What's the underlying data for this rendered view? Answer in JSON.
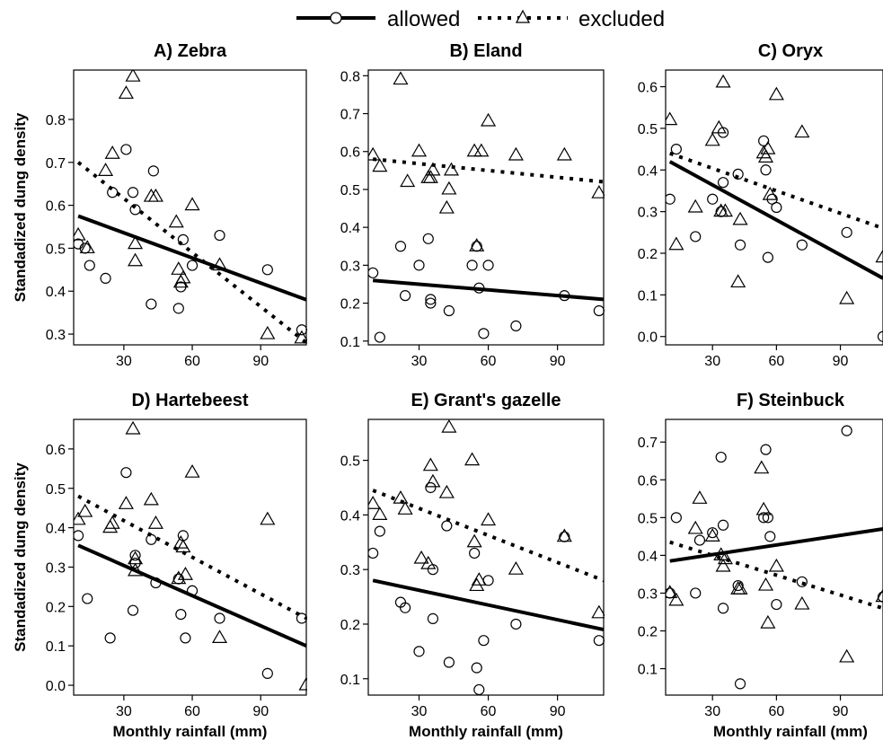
{
  "legend": {
    "allowed": "allowed",
    "excluded": "excluded"
  },
  "style": {
    "allowed_marker": "circle",
    "excluded_marker": "triangle",
    "allowed_line": "solid",
    "excluded_line": "dotted",
    "line_color": "#000000"
  },
  "chart_data": [
    {
      "type": "scatter",
      "title": "A) Zebra",
      "xlabel": "",
      "ylabel": "Standadized dung density",
      "xlim": [
        8,
        110
      ],
      "xticks": [
        30,
        60,
        90
      ],
      "ylim": [
        0.275,
        0.915
      ],
      "yticks": [
        0.3,
        0.4,
        0.5,
        0.6,
        0.7,
        0.8
      ],
      "series": [
        {
          "name": "allowed",
          "marker": "circle",
          "x": [
            10,
            13,
            15,
            22,
            25,
            31,
            34,
            35,
            43,
            42,
            54,
            55,
            56,
            60,
            72,
            93,
            108
          ],
          "y": [
            0.51,
            0.5,
            0.46,
            0.43,
            0.63,
            0.73,
            0.63,
            0.59,
            0.68,
            0.37,
            0.36,
            0.41,
            0.52,
            0.46,
            0.53,
            0.45,
            0.31
          ],
          "fit": [
            [
              10,
              0.575
            ],
            [
              110,
              0.38
            ]
          ]
        },
        {
          "name": "excluded",
          "marker": "triangle",
          "x": [
            10,
            14,
            22,
            25,
            31,
            34,
            35,
            35,
            42,
            44,
            53,
            54,
            55,
            56,
            60,
            72,
            93,
            108
          ],
          "y": [
            0.53,
            0.5,
            0.68,
            0.72,
            0.86,
            0.9,
            0.51,
            0.47,
            0.62,
            0.62,
            0.56,
            0.45,
            0.42,
            0.43,
            0.6,
            0.46,
            0.3,
            0.29
          ],
          "fit": [
            [
              10,
              0.7
            ],
            [
              110,
              0.28
            ]
          ]
        }
      ]
    },
    {
      "type": "scatter",
      "title": "B) Eland",
      "xlabel": "",
      "ylabel": "",
      "xlim": [
        8,
        110
      ],
      "xticks": [
        30,
        60,
        90
      ],
      "ylim": [
        0.09,
        0.815
      ],
      "yticks": [
        0.1,
        0.2,
        0.3,
        0.4,
        0.5,
        0.6,
        0.7,
        0.8
      ],
      "series": [
        {
          "name": "allowed",
          "marker": "circle",
          "x": [
            10,
            13,
            22,
            24,
            30,
            34,
            35,
            35,
            43,
            53,
            55,
            56,
            58,
            60,
            72,
            93,
            108
          ],
          "y": [
            0.28,
            0.11,
            0.35,
            0.22,
            0.3,
            0.37,
            0.2,
            0.21,
            0.18,
            0.3,
            0.35,
            0.24,
            0.12,
            0.3,
            0.14,
            0.22,
            0.18
          ],
          "fit": [
            [
              10,
              0.26
            ],
            [
              110,
              0.21
            ]
          ]
        },
        {
          "name": "excluded",
          "marker": "triangle",
          "x": [
            10,
            13,
            22,
            25,
            30,
            34,
            35,
            36,
            42,
            43,
            44,
            54,
            55,
            57,
            60,
            72,
            93,
            108
          ],
          "y": [
            0.59,
            0.56,
            0.79,
            0.52,
            0.6,
            0.53,
            0.53,
            0.55,
            0.45,
            0.5,
            0.55,
            0.6,
            0.35,
            0.6,
            0.68,
            0.59,
            0.59,
            0.49
          ],
          "fit": [
            [
              10,
              0.58
            ],
            [
              110,
              0.52
            ]
          ]
        }
      ]
    },
    {
      "type": "scatter",
      "title": "C) Oryx",
      "xlabel": "",
      "ylabel": "",
      "xlim": [
        8,
        110
      ],
      "xticks": [
        30,
        60,
        90
      ],
      "ylim": [
        -0.02,
        0.64
      ],
      "yticks": [
        0.0,
        0.1,
        0.2,
        0.3,
        0.4,
        0.5,
        0.6
      ],
      "series": [
        {
          "name": "allowed",
          "marker": "circle",
          "x": [
            10,
            13,
            22,
            30,
            34,
            35,
            35,
            42,
            43,
            54,
            55,
            56,
            58,
            60,
            72,
            93,
            110
          ],
          "y": [
            0.33,
            0.45,
            0.24,
            0.33,
            0.3,
            0.49,
            0.37,
            0.39,
            0.22,
            0.47,
            0.4,
            0.19,
            0.33,
            0.31,
            0.22,
            0.25,
            0.0
          ],
          "fit": [
            [
              10,
              0.42
            ],
            [
              110,
              0.14
            ]
          ]
        },
        {
          "name": "excluded",
          "marker": "triangle",
          "x": [
            10,
            13,
            22,
            30,
            33,
            34,
            35,
            36,
            42,
            43,
            54,
            55,
            56,
            57,
            60,
            72,
            93,
            110
          ],
          "y": [
            0.52,
            0.22,
            0.31,
            0.47,
            0.5,
            0.3,
            0.61,
            0.3,
            0.13,
            0.28,
            0.44,
            0.43,
            0.45,
            0.34,
            0.58,
            0.49,
            0.09,
            0.19
          ],
          "fit": [
            [
              10,
              0.44
            ],
            [
              110,
              0.26
            ]
          ]
        }
      ]
    },
    {
      "type": "scatter",
      "title": "D) Hartebeest",
      "xlabel": "Monthly rainfall (mm)",
      "ylabel": "Standadized dung density",
      "xlim": [
        8,
        110
      ],
      "xticks": [
        30,
        60,
        90
      ],
      "ylim": [
        -0.025,
        0.675
      ],
      "yticks": [
        0.0,
        0.1,
        0.2,
        0.3,
        0.4,
        0.5,
        0.6
      ],
      "series": [
        {
          "name": "allowed",
          "marker": "circle",
          "x": [
            10,
            14,
            24,
            31,
            34,
            35,
            35,
            42,
            44,
            54,
            55,
            56,
            57,
            60,
            72,
            93,
            108
          ],
          "y": [
            0.38,
            0.22,
            0.12,
            0.54,
            0.19,
            0.33,
            0.31,
            0.37,
            0.26,
            0.27,
            0.18,
            0.38,
            0.12,
            0.24,
            0.17,
            0.03,
            0.17
          ],
          "fit": [
            [
              10,
              0.355
            ],
            [
              110,
              0.1
            ]
          ]
        },
        {
          "name": "excluded",
          "marker": "triangle",
          "x": [
            10,
            13,
            24,
            25,
            31,
            34,
            35,
            35,
            42,
            44,
            54,
            55,
            56,
            57,
            60,
            72,
            93,
            110
          ],
          "y": [
            0.42,
            0.44,
            0.4,
            0.41,
            0.46,
            0.65,
            0.29,
            0.32,
            0.47,
            0.41,
            0.27,
            0.36,
            0.35,
            0.28,
            0.54,
            0.12,
            0.42,
            0.0
          ],
          "fit": [
            [
              10,
              0.48
            ],
            [
              110,
              0.17
            ]
          ]
        }
      ]
    },
    {
      "type": "scatter",
      "title": "E) Grant's gazelle",
      "xlabel": "Monthly rainfall (mm)",
      "ylabel": "",
      "xlim": [
        8,
        110
      ],
      "xticks": [
        30,
        60,
        90
      ],
      "ylim": [
        0.07,
        0.575
      ],
      "yticks": [
        0.1,
        0.2,
        0.3,
        0.4,
        0.5
      ],
      "series": [
        {
          "name": "allowed",
          "marker": "circle",
          "x": [
            10,
            13,
            22,
            24,
            30,
            35,
            36,
            36,
            42,
            43,
            54,
            55,
            56,
            58,
            60,
            72,
            93,
            108
          ],
          "y": [
            0.33,
            0.37,
            0.24,
            0.23,
            0.15,
            0.45,
            0.3,
            0.21,
            0.38,
            0.13,
            0.33,
            0.12,
            0.08,
            0.17,
            0.28,
            0.2,
            0.36,
            0.17
          ],
          "fit": [
            [
              10,
              0.28
            ],
            [
              110,
              0.19
            ]
          ]
        },
        {
          "name": "excluded",
          "marker": "triangle",
          "x": [
            10,
            13,
            22,
            24,
            31,
            34,
            35,
            36,
            42,
            43,
            53,
            54,
            55,
            56,
            60,
            72,
            93,
            108
          ],
          "y": [
            0.42,
            0.4,
            0.43,
            0.41,
            0.32,
            0.31,
            0.49,
            0.46,
            0.44,
            0.56,
            0.5,
            0.35,
            0.27,
            0.28,
            0.39,
            0.3,
            0.36,
            0.22
          ],
          "fit": [
            [
              10,
              0.445
            ],
            [
              110,
              0.28
            ]
          ]
        }
      ]
    },
    {
      "type": "scatter",
      "title": "F) Steinbuck",
      "xlabel": "Monthly rainfall (mm)",
      "ylabel": "",
      "xlim": [
        8,
        110
      ],
      "xticks": [
        30,
        60,
        90
      ],
      "ylim": [
        0.03,
        0.76
      ],
      "yticks": [
        0.1,
        0.2,
        0.3,
        0.4,
        0.5,
        0.6,
        0.7
      ],
      "series": [
        {
          "name": "allowed",
          "marker": "circle",
          "x": [
            10,
            13,
            22,
            24,
            30,
            34,
            35,
            35,
            42,
            43,
            54,
            55,
            56,
            57,
            60,
            72,
            93,
            110
          ],
          "y": [
            0.3,
            0.5,
            0.3,
            0.44,
            0.46,
            0.66,
            0.26,
            0.48,
            0.32,
            0.06,
            0.5,
            0.68,
            0.5,
            0.45,
            0.27,
            0.33,
            0.73,
            0.29
          ],
          "fit": [
            [
              10,
              0.385
            ],
            [
              110,
              0.47
            ]
          ]
        },
        {
          "name": "excluded",
          "marker": "triangle",
          "x": [
            10,
            13,
            22,
            24,
            30,
            34,
            35,
            36,
            42,
            43,
            53,
            54,
            55,
            56,
            60,
            72,
            93,
            110
          ],
          "y": [
            0.3,
            0.28,
            0.47,
            0.55,
            0.45,
            0.4,
            0.37,
            0.39,
            0.31,
            0.31,
            0.63,
            0.52,
            0.32,
            0.22,
            0.37,
            0.27,
            0.13,
            0.29
          ],
          "fit": [
            [
              10,
              0.435
            ],
            [
              110,
              0.26
            ]
          ]
        }
      ]
    }
  ]
}
